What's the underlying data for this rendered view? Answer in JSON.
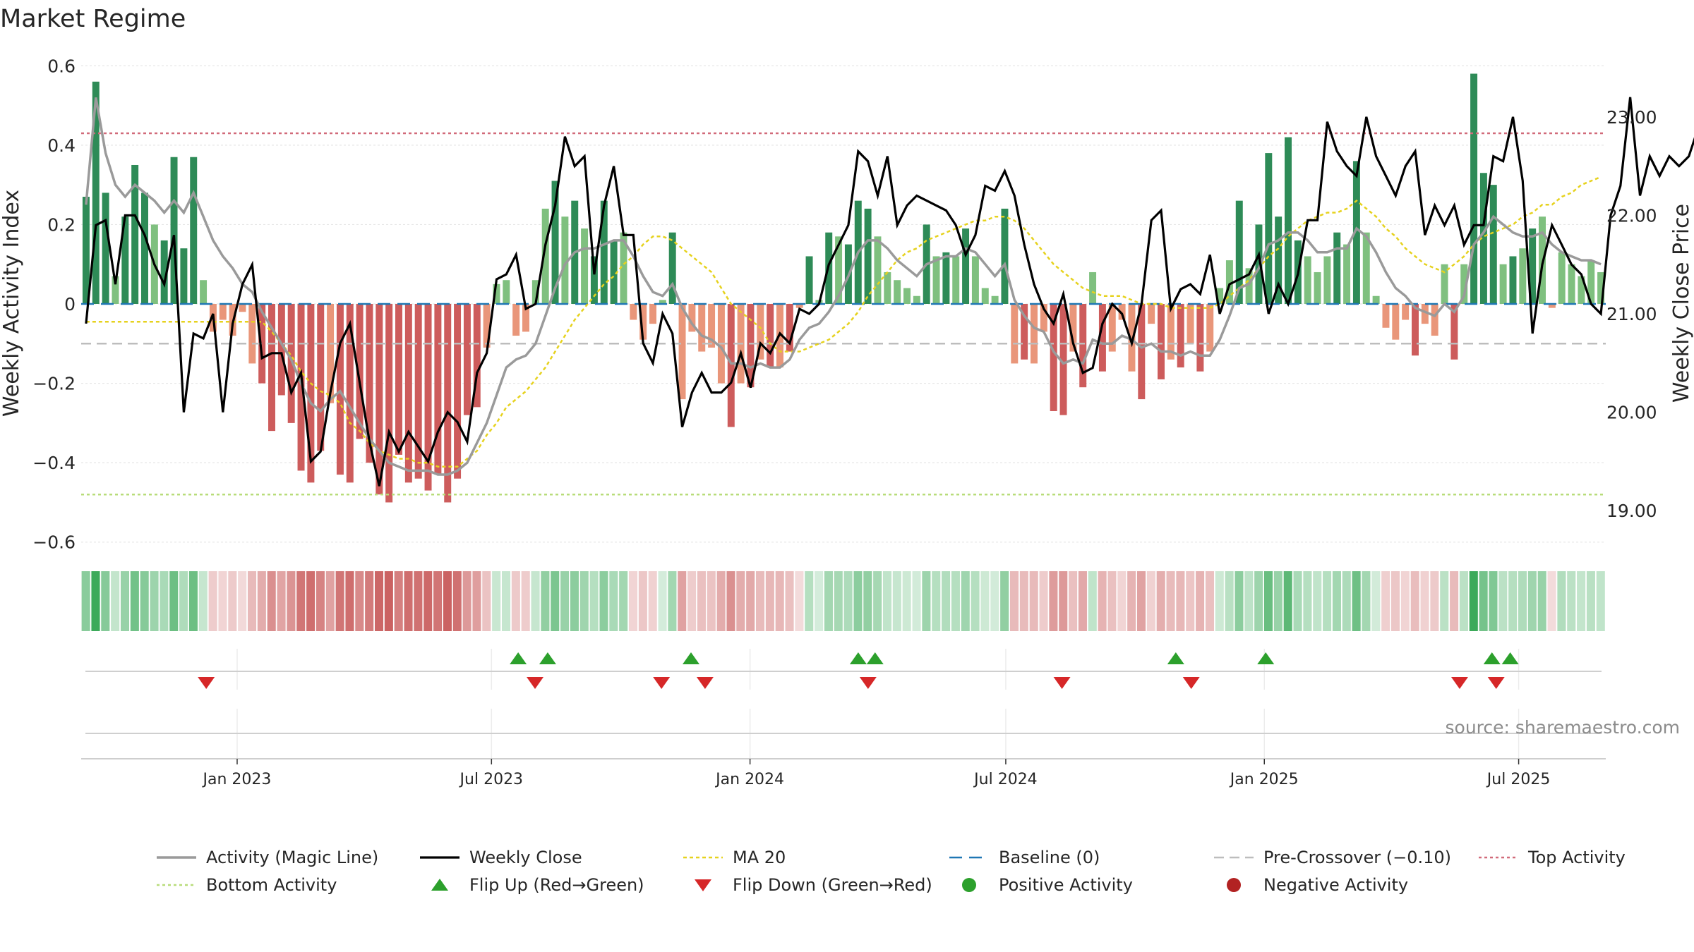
{
  "title": "Market Regime",
  "source": "source: sharemaestro.com",
  "colors": {
    "activity_line": "#9a9a9a",
    "close_line": "#000000",
    "ma20": "#e6d21e",
    "baseline": "#1f77b4",
    "pre_crossover": "#bdbdbd",
    "top_activity": "#d16b7a",
    "bottom_activity": "#b8dc7a",
    "pos_dark": "#2e8b57",
    "pos_light": "#7fc07f",
    "neg_dark": "#cd5c5c",
    "neg_light": "#e9967a",
    "flip_up": "#2ca02c",
    "flip_down": "#d62728",
    "positive_marker": "#2ca02c",
    "negative_marker": "#b22222"
  },
  "chart_data": {
    "type": "bar",
    "title": "Market Regime",
    "ylabel": "Weekly Activity Index",
    "y2label": "Weekly Close Price",
    "ylim": [
      -0.62,
      0.62
    ],
    "y2lim": [
      18.6,
      23.6
    ],
    "yticks": [
      "0.6",
      "0.4",
      "0.2",
      "0",
      "−0.2",
      "−0.4",
      "−0.6"
    ],
    "ytick_values": [
      0.6,
      0.4,
      0.2,
      0,
      -0.2,
      -0.4,
      -0.6
    ],
    "y2ticks": [
      "23.00",
      "22.00",
      "21.00",
      "20.00",
      "19.00"
    ],
    "y2tick_values": [
      23,
      22,
      21,
      20,
      19
    ],
    "x_start": "2022-09-12",
    "x_end": "2025-09-01",
    "xticks": [
      "Jan 2023",
      "Jul 2023",
      "Jan 2024",
      "Jul 2024",
      "Jan 2025",
      "Jul 2025"
    ],
    "xtick_dates": [
      "2023-01-01",
      "2023-07-01",
      "2024-01-01",
      "2024-07-01",
      "2025-01-01",
      "2025-07-01"
    ],
    "levels": {
      "top_activity": 0.43,
      "bottom_activity": -0.48,
      "pre_crossover": -0.1,
      "baseline": 0
    },
    "grid": true,
    "legend_position": "bottom",
    "legend": [
      "Activity (Magic Line)",
      "Weekly Close",
      "MA 20",
      "Baseline (0)",
      "Pre-Crossover (−0.10)",
      "Top Activity",
      "Bottom Activity",
      "Flip Up (Red→Green)",
      "Flip Down (Green→Red)",
      "Positive Activity",
      "Negative Activity"
    ],
    "activity_index": [
      0.27,
      0.56,
      0.28,
      0.07,
      0.22,
      0.35,
      0.28,
      0.2,
      0.16,
      0.37,
      0.14,
      0.37,
      0.06,
      -0.07,
      -0.04,
      -0.08,
      -0.02,
      -0.15,
      -0.2,
      -0.32,
      -0.23,
      -0.3,
      -0.42,
      -0.45,
      -0.37,
      -0.25,
      -0.43,
      -0.45,
      -0.34,
      -0.4,
      -0.48,
      -0.5,
      -0.38,
      -0.45,
      -0.44,
      -0.47,
      -0.43,
      -0.5,
      -0.44,
      -0.28,
      -0.26,
      -0.11,
      0.05,
      0.06,
      -0.08,
      -0.07,
      0.06,
      0.24,
      0.31,
      0.22,
      0.26,
      0.19,
      0.12,
      0.26,
      0.16,
      0.18,
      -0.04,
      -0.09,
      -0.05,
      0.01,
      0.18,
      -0.24,
      -0.07,
      -0.12,
      -0.11,
      -0.2,
      -0.31,
      -0.2,
      -0.21,
      -0.14,
      -0.16,
      -0.16,
      -0.12,
      -0.01,
      0.12,
      0.01,
      0.18,
      0.17,
      0.15,
      0.26,
      0.24,
      0.17,
      0.08,
      0.06,
      0.04,
      0.02,
      0.2,
      0.12,
      0.13,
      0.12,
      0.19,
      0.12,
      0.04,
      0.02,
      0.24,
      -0.15,
      -0.14,
      -0.15,
      -0.07,
      -0.27,
      -0.28,
      -0.12,
      -0.21,
      0.08,
      -0.17,
      -0.12,
      -0.04,
      -0.17,
      -0.24,
      -0.05,
      -0.19,
      -0.14,
      -0.16,
      -0.1,
      -0.17,
      -0.12,
      0.04,
      0.11,
      0.26,
      0.09,
      0.2,
      0.38,
      0.22,
      0.42,
      0.16,
      0.12,
      0.08,
      0.12,
      0.18,
      0.15,
      0.36,
      0.18,
      0.02,
      -0.06,
      -0.09,
      -0.04,
      -0.13,
      -0.05,
      -0.08,
      0.1,
      -0.14,
      0.1,
      0.58,
      0.33,
      0.3,
      0.1,
      0.12,
      0.14,
      0.19,
      0.22,
      -0.01,
      0.13,
      0.1,
      0.07,
      0.11,
      0.08
    ],
    "magic_line": [
      0.25,
      0.52,
      0.38,
      0.3,
      0.27,
      0.3,
      0.28,
      0.26,
      0.23,
      0.26,
      0.23,
      0.28,
      0.22,
      0.16,
      0.12,
      0.09,
      0.05,
      0.03,
      -0.02,
      -0.06,
      -0.1,
      -0.14,
      -0.2,
      -0.25,
      -0.27,
      -0.24,
      -0.22,
      -0.26,
      -0.3,
      -0.34,
      -0.37,
      -0.4,
      -0.41,
      -0.42,
      -0.42,
      -0.42,
      -0.43,
      -0.43,
      -0.42,
      -0.4,
      -0.35,
      -0.3,
      -0.23,
      -0.16,
      -0.14,
      -0.13,
      -0.1,
      -0.03,
      0.04,
      0.1,
      0.13,
      0.14,
      0.14,
      0.15,
      0.16,
      0.16,
      0.12,
      0.07,
      0.03,
      0.02,
      0.05,
      -0.01,
      -0.05,
      -0.08,
      -0.09,
      -0.11,
      -0.15,
      -0.15,
      -0.16,
      -0.15,
      -0.16,
      -0.16,
      -0.14,
      -0.09,
      -0.06,
      -0.05,
      -0.02,
      0.02,
      0.07,
      0.13,
      0.16,
      0.16,
      0.14,
      0.11,
      0.09,
      0.07,
      0.1,
      0.11,
      0.12,
      0.12,
      0.14,
      0.13,
      0.1,
      0.07,
      0.1,
      0.01,
      -0.03,
      -0.06,
      -0.07,
      -0.12,
      -0.15,
      -0.14,
      -0.15,
      -0.09,
      -0.1,
      -0.1,
      -0.08,
      -0.09,
      -0.11,
      -0.1,
      -0.12,
      -0.12,
      -0.13,
      -0.12,
      -0.13,
      -0.13,
      -0.09,
      -0.03,
      0.04,
      0.05,
      0.09,
      0.15,
      0.16,
      0.18,
      0.18,
      0.16,
      0.13,
      0.13,
      0.14,
      0.14,
      0.19,
      0.17,
      0.13,
      0.08,
      0.04,
      0.02,
      -0.01,
      -0.02,
      -0.03,
      0.0,
      -0.02,
      0.02,
      0.15,
      0.18,
      0.22,
      0.2,
      0.18,
      0.17,
      0.17,
      0.18,
      0.15,
      0.13,
      0.12,
      0.11,
      0.11,
      0.1
    ],
    "weekly_close": [
      20.9,
      21.9,
      21.95,
      21.3,
      22.0,
      22.0,
      21.8,
      21.5,
      21.3,
      21.8,
      20.0,
      20.8,
      20.75,
      21.0,
      20.0,
      20.9,
      21.3,
      21.5,
      20.55,
      20.6,
      20.6,
      20.2,
      20.4,
      19.5,
      19.6,
      20.2,
      20.7,
      20.9,
      20.3,
      19.7,
      19.25,
      19.8,
      19.6,
      19.8,
      19.65,
      19.5,
      19.8,
      20.0,
      19.9,
      19.7,
      20.4,
      20.6,
      21.35,
      21.4,
      21.6,
      21.05,
      21.1,
      21.7,
      22.1,
      22.8,
      22.5,
      22.6,
      21.4,
      22.1,
      22.5,
      21.8,
      21.8,
      20.7,
      20.5,
      21.0,
      20.8,
      19.85,
      20.2,
      20.4,
      20.2,
      20.2,
      20.3,
      20.6,
      20.25,
      20.7,
      20.6,
      20.8,
      20.7,
      21.05,
      21.0,
      21.1,
      21.5,
      21.7,
      21.9,
      22.65,
      22.55,
      22.2,
      22.6,
      21.9,
      22.1,
      22.2,
      22.15,
      22.1,
      22.05,
      21.9,
      21.6,
      21.8,
      22.3,
      22.25,
      22.45,
      22.2,
      21.7,
      21.3,
      21.05,
      20.9,
      21.2,
      20.7,
      20.4,
      20.45,
      20.9,
      21.1,
      21.0,
      20.7,
      21.1,
      21.95,
      22.05,
      21.05,
      21.25,
      21.3,
      21.2,
      21.6,
      21.0,
      21.3,
      21.35,
      21.4,
      21.6,
      21.0,
      21.3,
      21.1,
      21.4,
      21.95,
      21.95,
      22.95,
      22.65,
      22.5,
      22.4,
      23.0,
      22.6,
      22.4,
      22.2,
      22.5,
      22.65,
      21.8,
      22.1,
      21.9,
      22.1,
      21.7,
      21.9,
      21.9,
      22.6,
      22.55,
      23.0,
      22.35,
      20.8,
      21.5,
      21.9,
      21.7,
      21.5,
      21.4,
      21.1,
      21.0,
      22.0,
      22.3,
      23.2,
      22.2,
      22.6,
      22.4,
      22.6,
      22.5,
      22.6,
      22.9,
      22.6,
      22.2,
      22.1
    ],
    "ma20": [
      -0.045,
      -0.045,
      -0.045,
      -0.045,
      -0.045,
      -0.045,
      -0.045,
      -0.045,
      -0.045,
      -0.045,
      -0.045,
      -0.045,
      -0.045,
      -0.045,
      -0.045,
      -0.045,
      -0.045,
      -0.045,
      -0.045,
      -0.07,
      -0.1,
      -0.13,
      -0.17,
      -0.2,
      -0.22,
      -0.23,
      -0.25,
      -0.3,
      -0.32,
      -0.35,
      -0.37,
      -0.38,
      -0.39,
      -0.39,
      -0.4,
      -0.4,
      -0.41,
      -0.41,
      -0.41,
      -0.39,
      -0.37,
      -0.33,
      -0.3,
      -0.26,
      -0.24,
      -0.22,
      -0.19,
      -0.16,
      -0.12,
      -0.08,
      -0.04,
      -0.01,
      0.02,
      0.05,
      0.07,
      0.1,
      0.12,
      0.15,
      0.17,
      0.17,
      0.16,
      0.14,
      0.12,
      0.1,
      0.08,
      0.04,
      0.0,
      -0.02,
      -0.04,
      -0.06,
      -0.1,
      -0.12,
      -0.12,
      -0.12,
      -0.11,
      -0.1,
      -0.09,
      -0.07,
      -0.05,
      -0.02,
      0.02,
      0.05,
      0.08,
      0.11,
      0.13,
      0.14,
      0.16,
      0.17,
      0.18,
      0.19,
      0.2,
      0.21,
      0.21,
      0.22,
      0.22,
      0.21,
      0.19,
      0.16,
      0.13,
      0.1,
      0.08,
      0.06,
      0.04,
      0.03,
      0.02,
      0.02,
      0.02,
      0.01,
      0.0,
      0.0,
      0.0,
      -0.01,
      -0.01,
      -0.01,
      -0.01,
      -0.01,
      0.0,
      0.02,
      0.04,
      0.06,
      0.09,
      0.12,
      0.14,
      0.17,
      0.19,
      0.21,
      0.22,
      0.23,
      0.23,
      0.24,
      0.26,
      0.24,
      0.22,
      0.19,
      0.17,
      0.14,
      0.12,
      0.1,
      0.09,
      0.08,
      0.1,
      0.12,
      0.15,
      0.17,
      0.18,
      0.19,
      0.2,
      0.22,
      0.23,
      0.25,
      0.25,
      0.27,
      0.28,
      0.3,
      0.31,
      0.32
    ],
    "flip_up_dates": [
      "2023-07-20",
      "2023-08-10",
      "2023-11-20",
      "2024-03-18",
      "2024-03-30",
      "2024-10-30",
      "2025-01-02",
      "2025-06-12",
      "2025-06-25"
    ],
    "flip_down_dates": [
      "2022-12-10",
      "2023-08-01",
      "2023-10-30",
      "2023-11-30",
      "2024-03-25",
      "2024-08-10",
      "2024-11-10",
      "2025-05-20",
      "2025-06-15"
    ]
  }
}
